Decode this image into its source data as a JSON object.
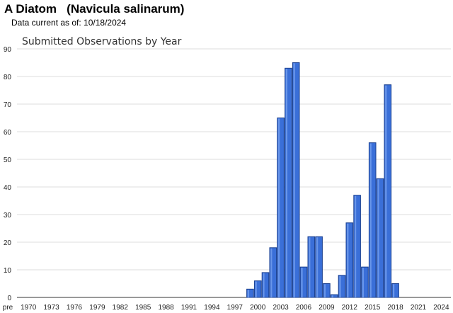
{
  "header": {
    "title": "A Diatom   (Navicula salinarum)",
    "subtitle": "Data current as of: 10/18/2024"
  },
  "chart_data": {
    "type": "bar",
    "title": "Submitted Observations by Year",
    "xlabel": "",
    "ylabel": "",
    "ylim": [
      0,
      90
    ],
    "yticks": [
      0,
      10,
      20,
      30,
      40,
      50,
      60,
      70,
      80,
      90
    ],
    "grid": true,
    "bar_color": "#3a6fd8",
    "bar_edge_color": "#1a3f8f",
    "x_tick_labels": [
      "pre",
      "1970",
      "1973",
      "1976",
      "1979",
      "1982",
      "1985",
      "1988",
      "1991",
      "1994",
      "1997",
      "2000",
      "2003",
      "2006",
      "2009",
      "2012",
      "2015",
      "2018",
      "2021",
      "2024"
    ],
    "categories": [
      "1999",
      "2000",
      "2001",
      "2002",
      "2003",
      "2004",
      "2005",
      "2006",
      "2007",
      "2008",
      "2009",
      "2010",
      "2011",
      "2012",
      "2013",
      "2014",
      "2015",
      "2016",
      "2017",
      "2018"
    ],
    "values": [
      3,
      6,
      9,
      18,
      65,
      83,
      85,
      11,
      22,
      22,
      5,
      1,
      8,
      27,
      37,
      11,
      56,
      43,
      77,
      5
    ]
  }
}
